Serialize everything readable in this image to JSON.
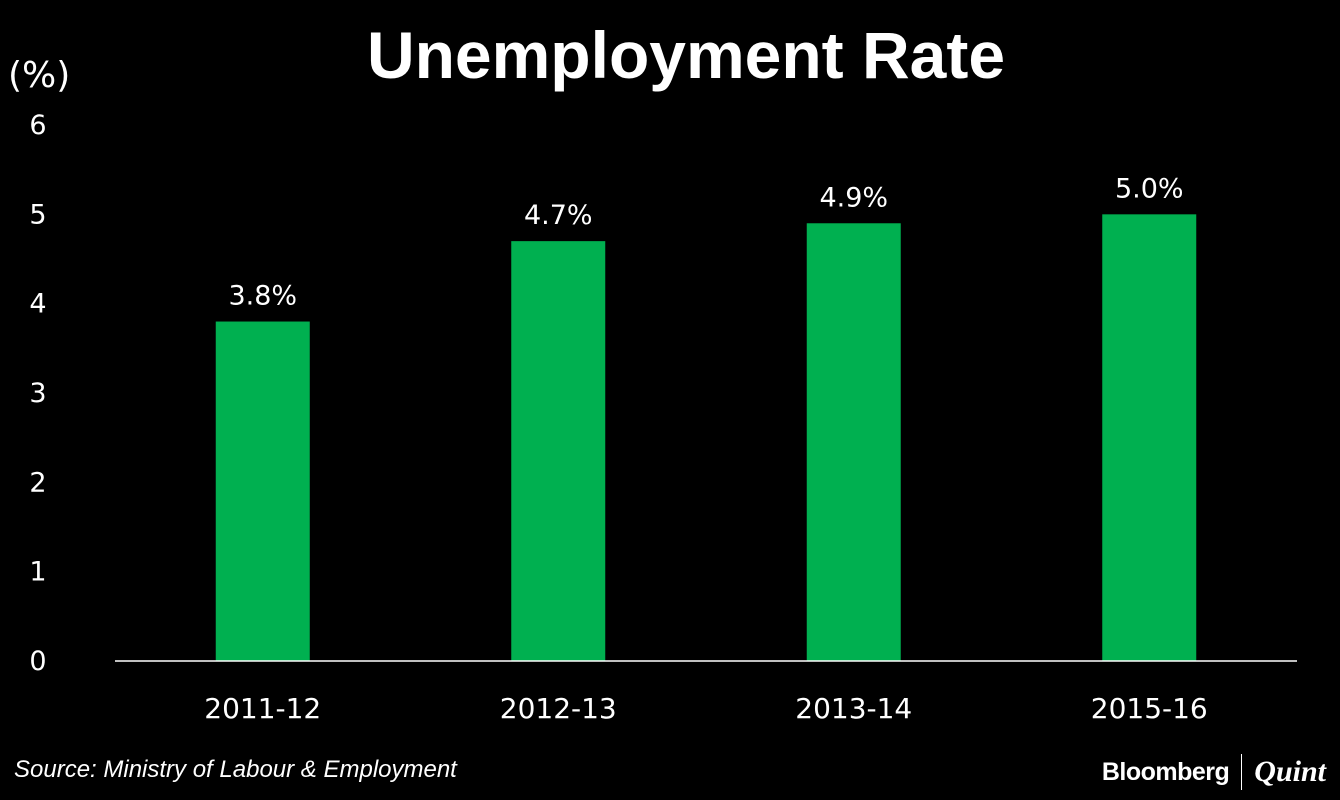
{
  "chart_data": {
    "type": "bar",
    "title": "Unemployment Rate",
    "ylabel": "(%)",
    "xlabel": "",
    "categories": [
      "2011-12",
      "2012-13",
      "2013-14",
      "2015-16"
    ],
    "values": [
      3.8,
      4.7,
      4.9,
      5.0
    ],
    "data_labels": [
      "3.8%",
      "4.7%",
      "4.9%",
      "5.0%"
    ],
    "ylim": [
      0,
      6
    ],
    "yticks": [
      "0",
      "1",
      "2",
      "3",
      "4",
      "5",
      "6"
    ],
    "grid": false,
    "legend": "none",
    "colors": {
      "bar": "#00b050",
      "background": "#000000",
      "text": "#ffffff"
    }
  },
  "footer": {
    "source": "Source: Ministry of Labour & Employment",
    "brand_primary": "Bloomberg",
    "brand_secondary": "Quint"
  }
}
